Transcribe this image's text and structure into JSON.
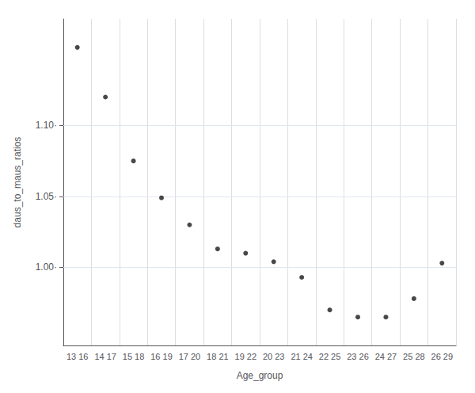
{
  "chart_data": {
    "type": "scatter",
    "categories": [
      "13 16",
      "14 17",
      "15 18",
      "16 19",
      "17 20",
      "18 21",
      "19 22",
      "20 23",
      "21 24",
      "22 25",
      "23 26",
      "24 27",
      "25 28",
      "26 29"
    ],
    "values": [
      1.155,
      1.12,
      1.075,
      1.049,
      1.03,
      1.013,
      1.01,
      1.004,
      0.993,
      0.97,
      0.965,
      0.965,
      0.978,
      1.003
    ],
    "color": "#1a1a1a",
    "xlabel": "Age_group",
    "ylabel": "daus_to_maus_ratios",
    "ylim": [
      0.945,
      1.175
    ],
    "yticks": [
      {
        "value": 1.0,
        "label": "1.00·"
      },
      {
        "value": 1.05,
        "label": "1.05·"
      },
      {
        "value": 1.1,
        "label": "1.10·"
      }
    ],
    "grid": true
  }
}
